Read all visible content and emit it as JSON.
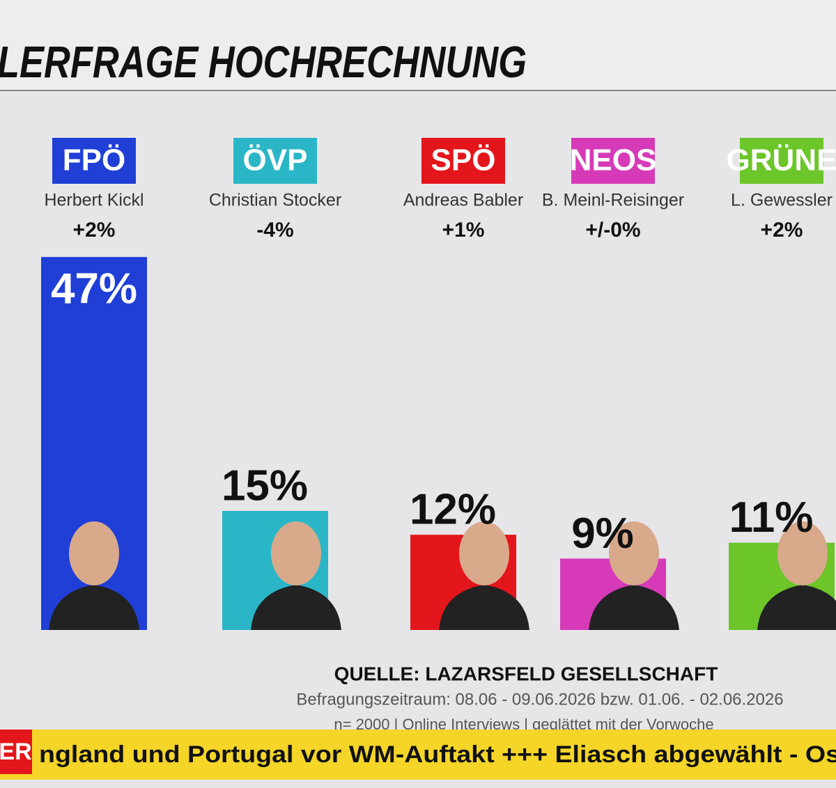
{
  "chart_data": {
    "type": "bar",
    "title": "LERFRAGE HOCHRECHNUNG",
    "categories": [
      "FPÖ",
      "ÖVP",
      "SPÖ",
      "NEOS",
      "GRÜNE"
    ],
    "candidates": [
      "Herbert Kickl",
      "Christian Stocker",
      "Andreas Babler",
      "B. Meinl-Reisinger",
      "L. Gewessler"
    ],
    "changes": [
      "+2%",
      "-4%",
      "+1%",
      "+/-0%",
      "+2%"
    ],
    "values": [
      47,
      15,
      12,
      9,
      11
    ],
    "value_labels": [
      "47%",
      "15%",
      "12%",
      "9%",
      "11%"
    ],
    "colors": [
      "#1f3fd6",
      "#2ab6c6",
      "#e3161b",
      "#d63ab8",
      "#6cc62a"
    ],
    "source": "QUELLE: LAZARSFELD GESELLSCHAFT",
    "period": "Befragungszeitraum: 08.06 - 09.06.2026 bzw. 01.06. - 02.06.2026",
    "method": "n= 2000 | Online Interviews | geglättet mit der Vorwoche"
  },
  "ticker": {
    "badge": "ER",
    "text": "ngland und Portugal vor WM-Auftakt +++ Eliasch abgewählt - Os"
  }
}
